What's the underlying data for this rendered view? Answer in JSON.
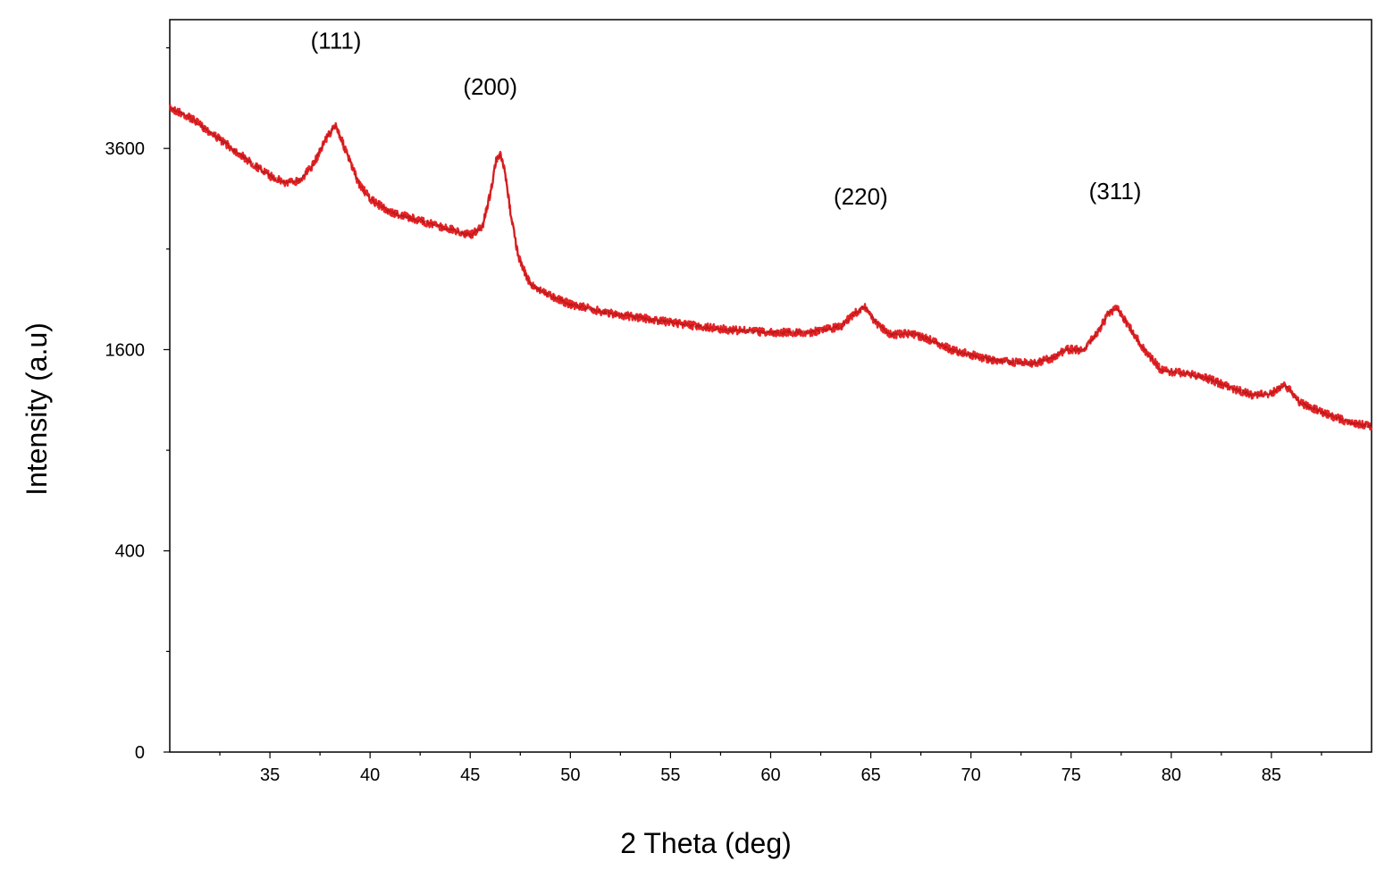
{
  "chart_data": {
    "type": "line",
    "title": "",
    "xlabel": "2 Theta (deg)",
    "ylabel": "Intensity (a.u)",
    "xlim": [
      30,
      90
    ],
    "y_scale": "sqrt",
    "ylim": [
      0,
      5300
    ],
    "grid": false,
    "legend": "none",
    "x_ticks": [
      35,
      40,
      45,
      50,
      55,
      60,
      65,
      70,
      75,
      80,
      85
    ],
    "x_tick_labels": [
      "35",
      "40",
      "45",
      "50",
      "55",
      "60",
      "65",
      "70",
      "75",
      "80",
      "85"
    ],
    "y_ticks": [
      0,
      400,
      1600,
      3600
    ],
    "y_tick_labels": [
      "0",
      "400",
      "1600",
      "3600"
    ],
    "series": [
      {
        "color": "#e8191c",
        "x": [
          30,
          31,
          32,
          33,
          34,
          35,
          35.8,
          36.5,
          37.2,
          37.8,
          38.3,
          38.8,
          39.4,
          40,
          41,
          42,
          43,
          44,
          45,
          45.6,
          46.0,
          46.3,
          46.5,
          46.7,
          47.0,
          47.4,
          48,
          49,
          50,
          52,
          54,
          56,
          58,
          60,
          62,
          63.5,
          64.2,
          64.7,
          65.3,
          66,
          67,
          67.8,
          69,
          71,
          73,
          74,
          74.8,
          75.6,
          76.3,
          76.9,
          77.3,
          77.8,
          78.6,
          79.5,
          81,
          81.8,
          83,
          84,
          85,
          85.7,
          86.4,
          87.5,
          89,
          90
        ],
        "y": [
          4100,
          3980,
          3800,
          3620,
          3440,
          3280,
          3200,
          3230,
          3420,
          3720,
          3880,
          3560,
          3210,
          3020,
          2880,
          2820,
          2760,
          2700,
          2640,
          2720,
          3080,
          3460,
          3520,
          3360,
          2900,
          2420,
          2160,
          2060,
          1980,
          1900,
          1850,
          1800,
          1760,
          1740,
          1740,
          1790,
          1900,
          1960,
          1810,
          1720,
          1730,
          1690,
          1600,
          1520,
          1490,
          1530,
          1600,
          1600,
          1730,
          1910,
          1940,
          1810,
          1610,
          1440,
          1410,
          1380,
          1310,
          1260,
          1270,
          1330,
          1210,
          1140,
          1070,
          1050
        ]
      }
    ],
    "annotations": [
      {
        "text": "(111)",
        "x": 38.3,
        "y": 4890
      },
      {
        "text": "(200)",
        "x": 46.0,
        "y": 4270
      },
      {
        "text": "(220)",
        "x": 64.5,
        "y": 2960
      },
      {
        "text": "(311)",
        "x": 77.2,
        "y": 3020
      }
    ]
  }
}
